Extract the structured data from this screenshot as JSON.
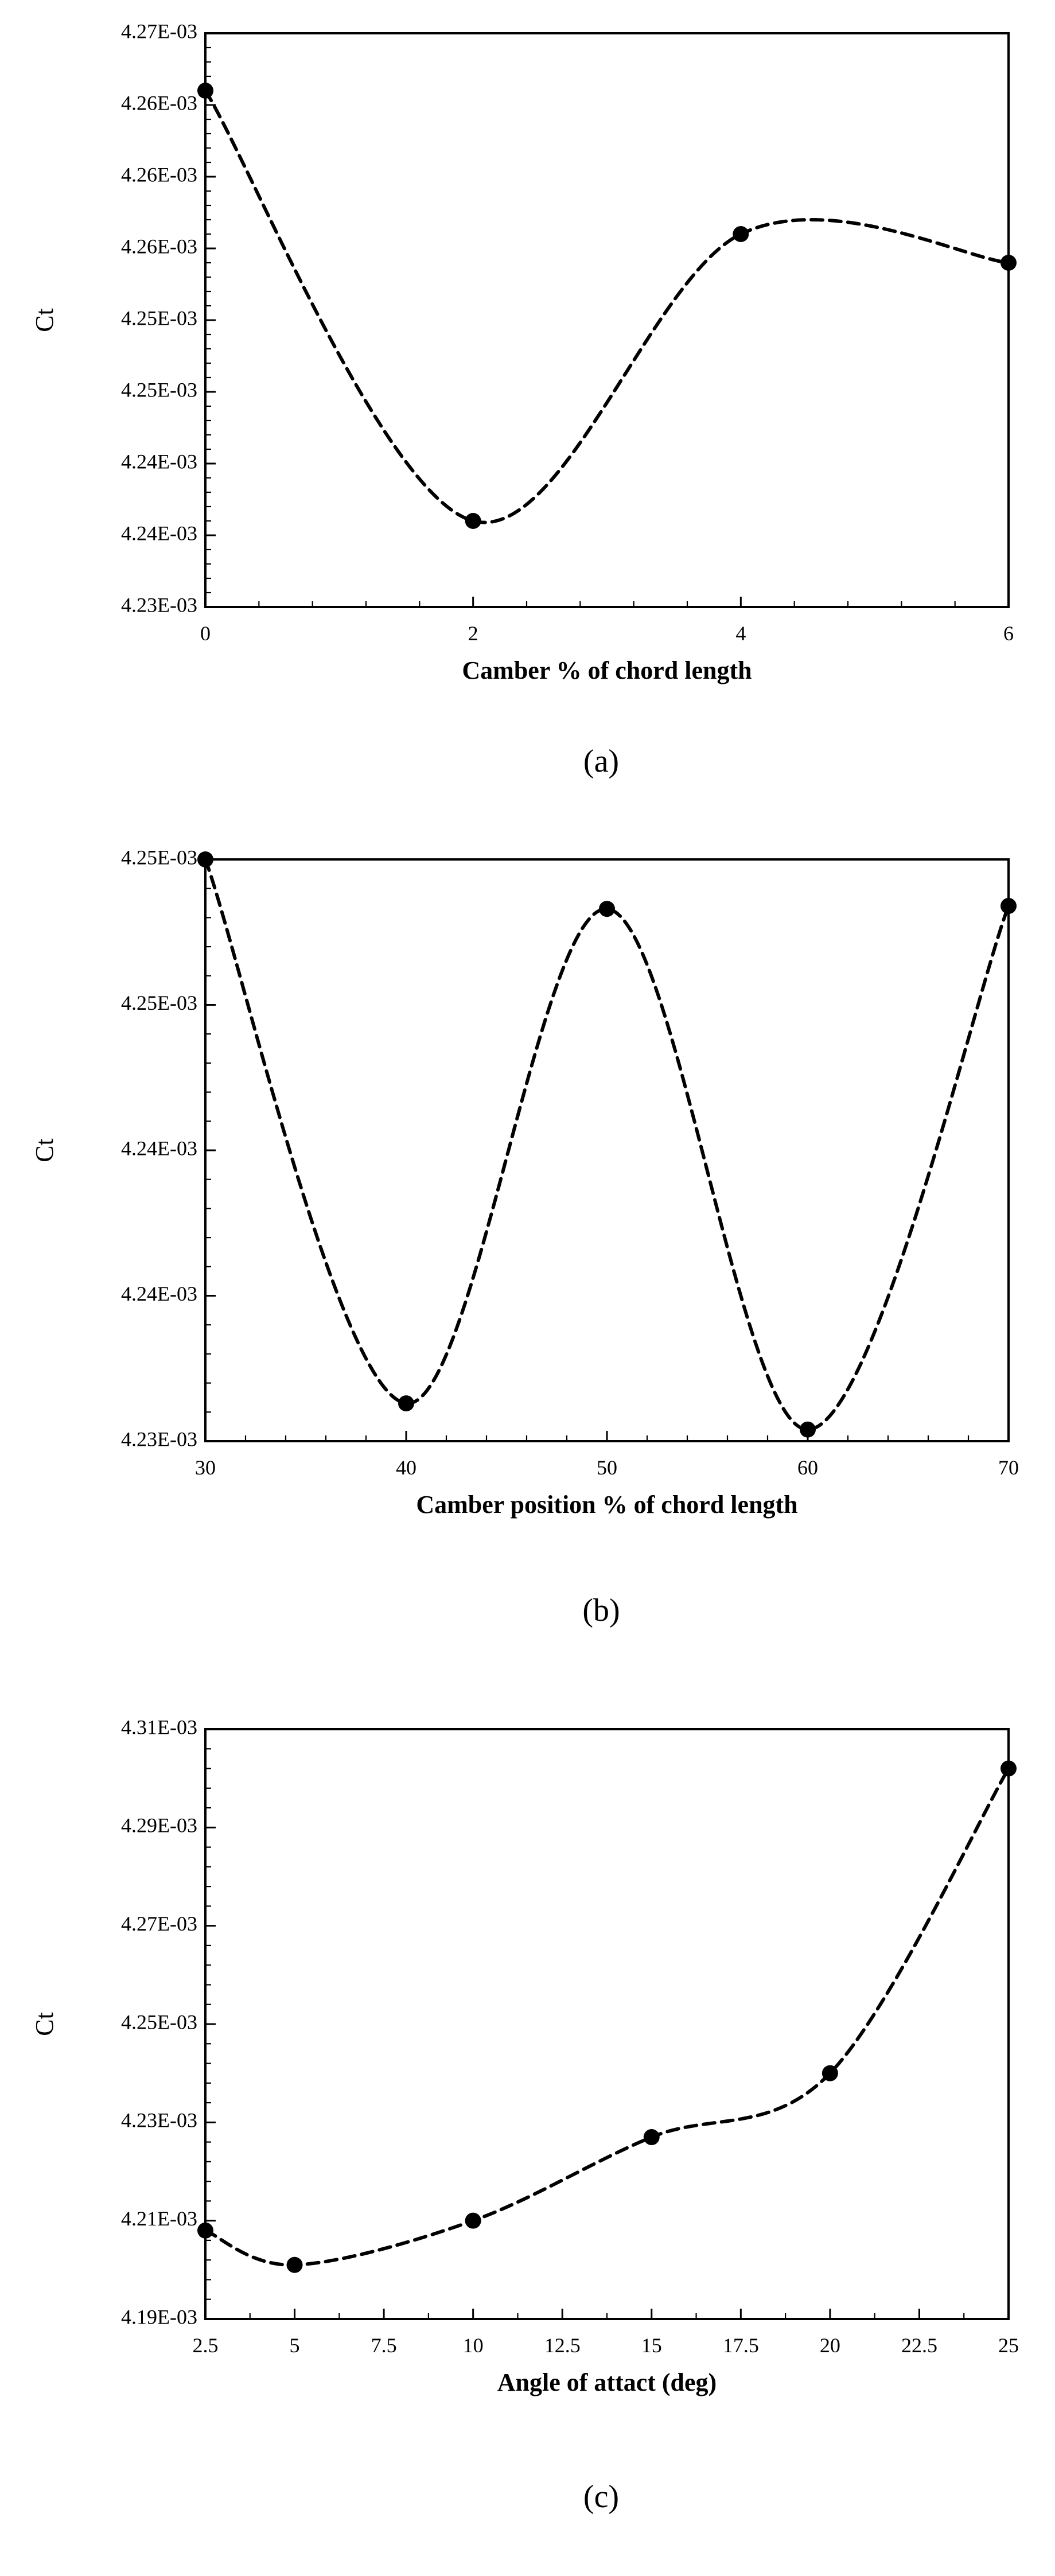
{
  "chart_data": [
    {
      "type": "line",
      "caption": "(a)",
      "xlabel": "Camber % of chord length",
      "ylabel": "Ct",
      "x": [
        0,
        2,
        4,
        6
      ],
      "xlim": [
        0,
        6
      ],
      "xticks": [
        0,
        2,
        4,
        6
      ],
      "xtick_labels": [
        "0",
        "2",
        "4",
        "6"
      ],
      "ylim": [
        0.00423,
        0.00427
      ],
      "yticks": [
        0.00423,
        0.004235,
        0.00424,
        0.004245,
        0.00425,
        0.004255,
        0.00426,
        0.004265,
        0.00427
      ],
      "ytick_labels": [
        "4.23E-03",
        "4.24E-03",
        "4.24E-03",
        "4.25E-03",
        "4.25E-03",
        "4.26E-03",
        "4.26E-03",
        "4.26E-03",
        "4.27E-03"
      ],
      "series": [
        {
          "values": [
            0.004266,
            0.004236,
            0.004256,
            0.004254
          ],
          "style": "dashed smooth line with filled circle markers"
        }
      ],
      "grid": false
    },
    {
      "type": "line",
      "caption": "(b)",
      "xlabel": "Camber position % of chord length",
      "ylabel": "Ct",
      "x": [
        30,
        40,
        50,
        60,
        70
      ],
      "xlim": [
        30,
        70
      ],
      "xticks": [
        30,
        40,
        50,
        60,
        70
      ],
      "xtick_labels": [
        "30",
        "40",
        "50",
        "60",
        "70"
      ],
      "ylim": [
        0.00423,
        0.00425
      ],
      "yticks": [
        0.00423,
        0.004235,
        0.00424,
        0.004245,
        0.00425
      ],
      "ytick_labels": [
        "4.23E-03",
        "4.24E-03",
        "4.24E-03",
        "4.25E-03",
        "4.25E-03"
      ],
      "series": [
        {
          "values": [
            0.00425,
            0.0042313,
            0.0042483,
            0.0042304,
            0.0042484
          ],
          "style": "dashed smooth line with filled circle markers"
        }
      ],
      "grid": false
    },
    {
      "type": "line",
      "caption": "(c)",
      "xlabel": "Angle of attact (deg)",
      "ylabel": "Ct",
      "x": [
        2.5,
        5,
        10,
        15,
        20,
        25
      ],
      "xlim": [
        2.5,
        25
      ],
      "xticks": [
        2.5,
        5,
        7.5,
        10,
        12.5,
        15,
        17.5,
        20,
        22.5,
        25
      ],
      "xtick_labels": [
        "2.5",
        "5",
        "7.5",
        "10",
        "12.5",
        "15",
        "17.5",
        "20",
        "22.5",
        "25"
      ],
      "ylim": [
        0.00419,
        0.00431
      ],
      "yticks": [
        0.00419,
        0.00421,
        0.00423,
        0.00425,
        0.00427,
        0.00429,
        0.00431
      ],
      "ytick_labels": [
        "4.19E-03",
        "4.21E-03",
        "4.23E-03",
        "4.25E-03",
        "4.27E-03",
        "4.29E-03",
        "4.31E-03"
      ],
      "series": [
        {
          "values": [
            0.004208,
            0.004201,
            0.00421,
            0.004227,
            0.00424,
            0.004302
          ],
          "style": "dashed smooth line with filled circle markers"
        }
      ],
      "grid": false
    }
  ]
}
